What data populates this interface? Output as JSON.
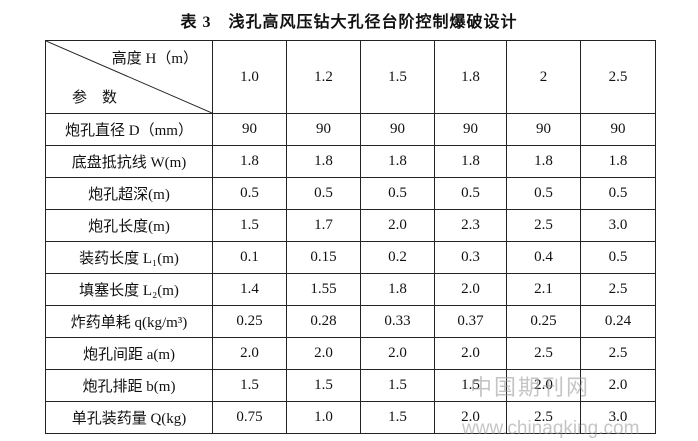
{
  "title": "表 3　浅孔高风压钻大孔径台阶控制爆破设计",
  "table": {
    "header": {
      "top_label": "高度 H（m）",
      "bottom_label": "参　数",
      "columns": [
        "1.0",
        "1.2",
        "1.5",
        "1.8",
        "2",
        "2.5"
      ]
    },
    "rows": [
      {
        "label": "炮孔直径 D（mm）",
        "cells": [
          "90",
          "90",
          "90",
          "90",
          "90",
          "90"
        ]
      },
      {
        "label": "底盘抵抗线 W(m)",
        "cells": [
          "1.8",
          "1.8",
          "1.8",
          "1.8",
          "1.8",
          "1.8"
        ]
      },
      {
        "label": "炮孔超深(m)",
        "cells": [
          "0.5",
          "0.5",
          "0.5",
          "0.5",
          "0.5",
          "0.5"
        ]
      },
      {
        "label": "炮孔长度(m)",
        "cells": [
          "1.5",
          "1.7",
          "2.0",
          "2.3",
          "2.5",
          "3.0"
        ]
      },
      {
        "label": "装药长度 L₁(m)",
        "cells": [
          "0.1",
          "0.15",
          "0.2",
          "0.3",
          "0.4",
          "0.5"
        ]
      },
      {
        "label": "填塞长度 L₂(m)",
        "cells": [
          "1.4",
          "1.55",
          "1.8",
          "2.0",
          "2.1",
          "2.5"
        ]
      },
      {
        "label": "炸药单耗 q(kg/m³)",
        "cells": [
          "0.25",
          "0.28",
          "0.33",
          "0.37",
          "0.25",
          "0.24"
        ]
      },
      {
        "label": "炮孔间距 a(m)",
        "cells": [
          "2.0",
          "2.0",
          "2.0",
          "2.0",
          "2.5",
          "2.5"
        ]
      },
      {
        "label": "炮孔排距 b(m)",
        "cells": [
          "1.5",
          "1.5",
          "1.5",
          "1.5",
          "2.0",
          "2.0"
        ]
      },
      {
        "label": "单孔装药量 Q(kg)",
        "cells": [
          "0.75",
          "1.0",
          "1.5",
          "2.0",
          "2.5",
          "3.0"
        ]
      }
    ]
  },
  "watermark": {
    "name": "中国期刊网",
    "url": "www.chinaqking.com"
  }
}
